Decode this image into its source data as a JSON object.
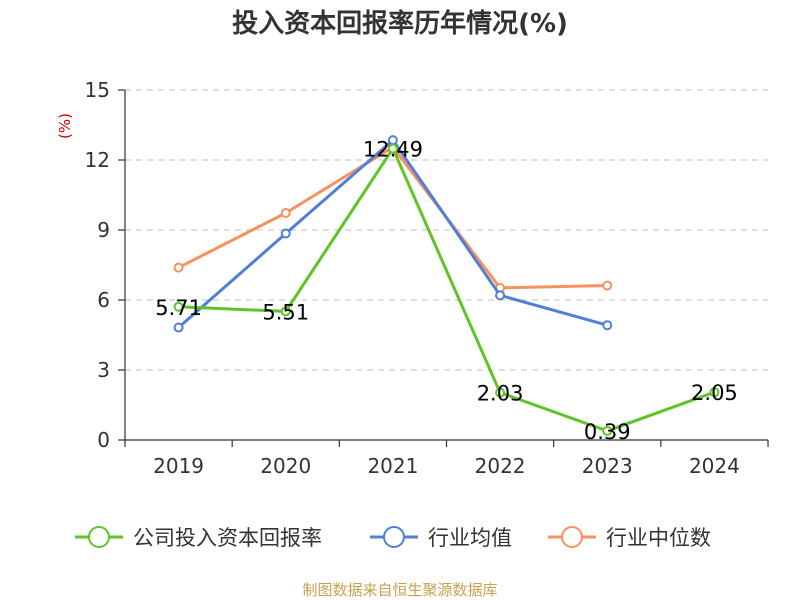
{
  "chart_data": {
    "type": "line",
    "title": "投入资本回报率历年情况(%)",
    "ylabel": "(%)",
    "categories": [
      "2019",
      "2020",
      "2021",
      "2022",
      "2023",
      "2024"
    ],
    "ylim": [
      0,
      15
    ],
    "yticks": [
      0,
      3,
      6,
      9,
      12,
      15
    ],
    "grid": true,
    "legend_position": "bottom",
    "series": [
      {
        "name": "公司投入资本回报率",
        "color": "#5ec427",
        "values": [
          5.71,
          5.51,
          12.49,
          2.03,
          0.39,
          2.05
        ],
        "labels": [
          "5.71",
          "5.51",
          "12.49",
          "2.03",
          "0.39",
          "2.05"
        ]
      },
      {
        "name": "行业均值",
        "color": "#4f7fd9",
        "values": [
          4.82,
          8.85,
          12.85,
          6.2,
          4.92,
          null
        ]
      },
      {
        "name": "行业中位数",
        "color": "#f7915e",
        "values": [
          7.39,
          9.73,
          12.55,
          6.52,
          6.62,
          null
        ]
      }
    ]
  },
  "source": "制图数据来自恒生聚源数据库"
}
